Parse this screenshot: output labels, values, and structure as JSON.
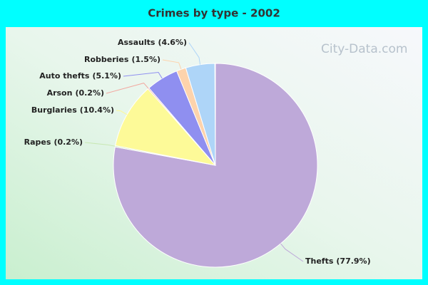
{
  "chart_data": {
    "type": "pie",
    "title": "Crimes by type - 2002",
    "watermark": "City-Data.com",
    "categories": [
      "Thefts",
      "Rapes",
      "Burglaries",
      "Arson",
      "Auto thefts",
      "Robberies",
      "Assaults"
    ],
    "values": [
      77.9,
      0.2,
      10.4,
      0.2,
      5.1,
      1.5,
      4.6
    ],
    "value_labels": [
      "(77.9%)",
      "(0.2%)",
      "(10.4%)",
      "(0.2%)",
      "(5.1%)",
      "(1.5%)",
      "(4.6%)"
    ],
    "colors": [
      "#bea9d9",
      "#c9e8b4",
      "#fdfa98",
      "#f2a8a0",
      "#8f8ff0",
      "#fdd3ac",
      "#aed5f8"
    ]
  }
}
